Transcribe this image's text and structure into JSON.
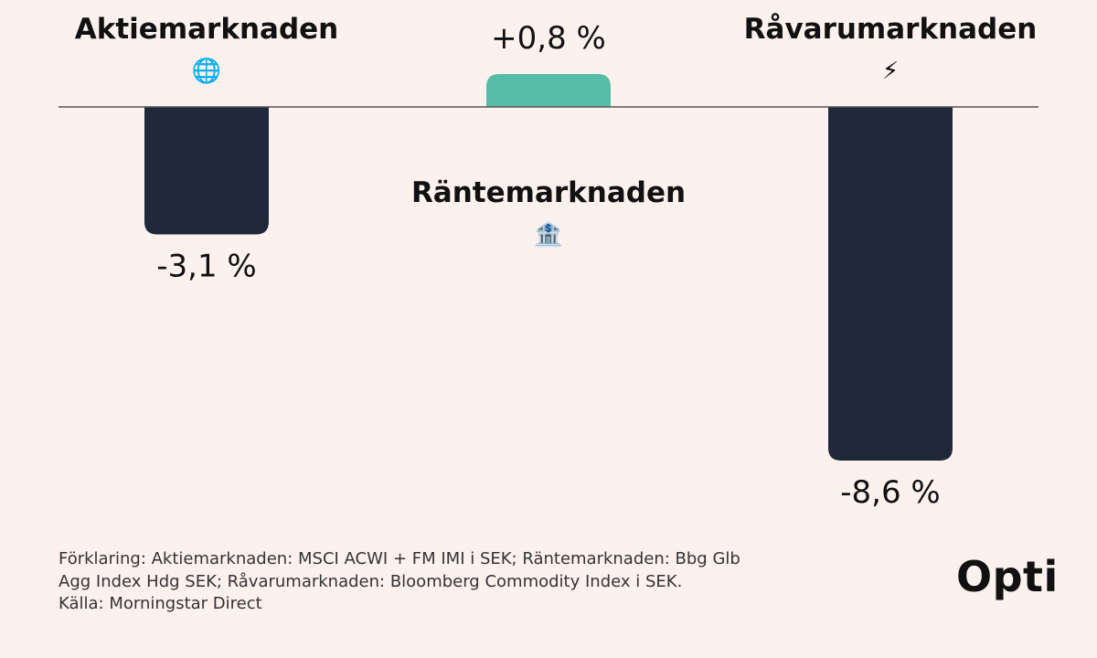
{
  "chart_data": {
    "type": "bar",
    "categories": [
      "Aktiemarknaden",
      "Räntemarknaden",
      "Råvarumarknaden"
    ],
    "values": [
      -3.1,
      0.8,
      -8.6
    ],
    "value_labels": [
      "-3,1 %",
      "+0,8 %",
      "-8,6 %"
    ],
    "category_icons": [
      "🌐",
      "🏦",
      "⚡"
    ],
    "bar_colors": [
      "#1F293A",
      "#57BCA7",
      "#1F293A"
    ],
    "baseline_color": "#555555"
  },
  "footnote": {
    "lines": [
      "Förklaring: Aktiemarknaden: MSCI ACWI + FM IMI i SEK; Räntemarknaden: Bbg Glb",
      "Agg Index Hdg SEK; Råvarumarknaden: Bloomberg Commodity Index i SEK.",
      "Källa: Morningstar Direct"
    ]
  },
  "brand": {
    "logo_text": "Opti"
  }
}
